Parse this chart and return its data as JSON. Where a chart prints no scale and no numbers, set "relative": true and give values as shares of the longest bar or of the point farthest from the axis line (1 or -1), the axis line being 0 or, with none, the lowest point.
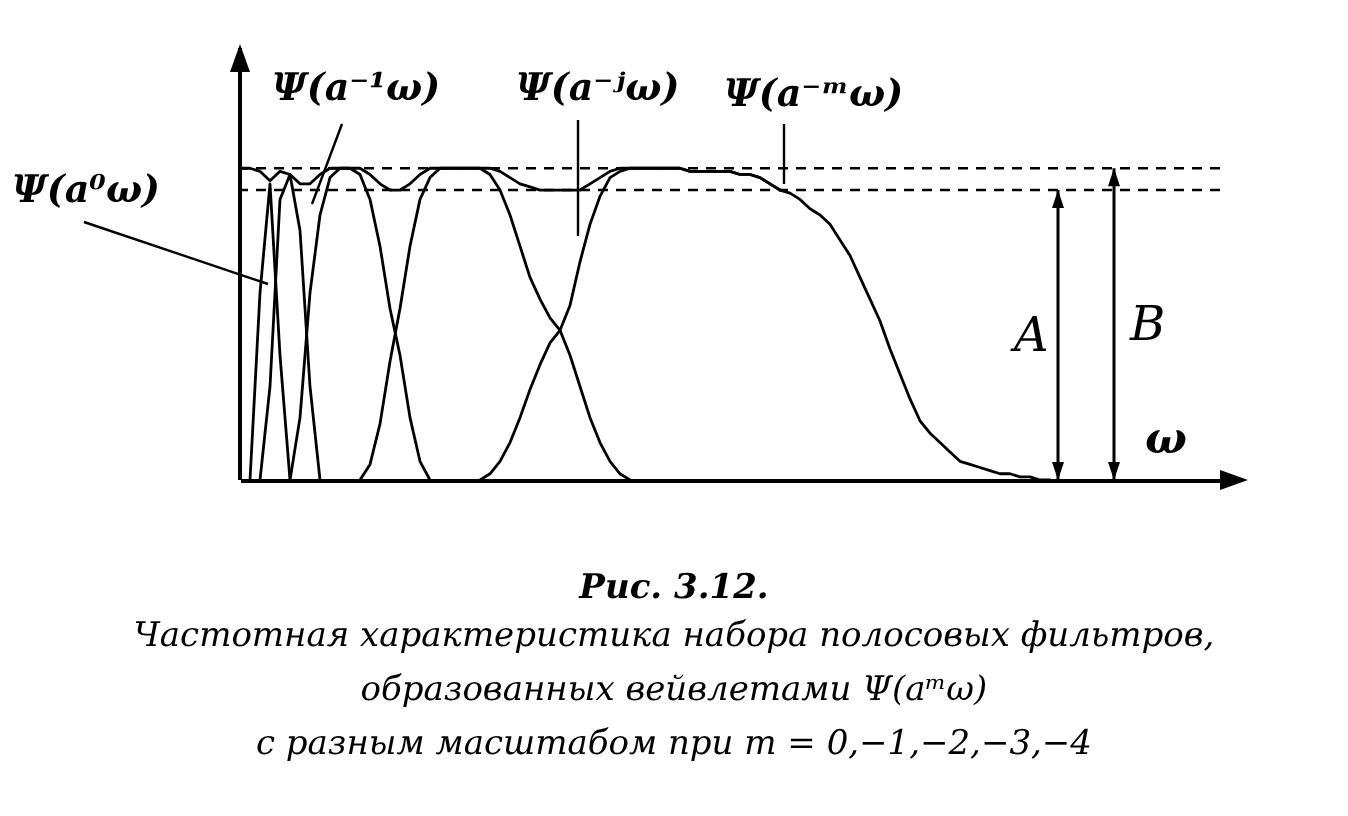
{
  "chart_data": {
    "type": "line",
    "relative": true,
    "title": "Рис. 3.12.",
    "xlabel": "ω",
    "categories": [
      null,
      null,
      null,
      null,
      null,
      null,
      null,
      null,
      null,
      null,
      null,
      null,
      null,
      null,
      null,
      null,
      null,
      null,
      null,
      null,
      null,
      null,
      null,
      null,
      null,
      null,
      null,
      null,
      null,
      null,
      null,
      null,
      null,
      null,
      null,
      null,
      null,
      null,
      null,
      null,
      null,
      null,
      null,
      null,
      null,
      null,
      null,
      null,
      null,
      null,
      null,
      null,
      null,
      null,
      null,
      null,
      null,
      null,
      null,
      null,
      null,
      null,
      null,
      null,
      null,
      null,
      null,
      null,
      null,
      null,
      null,
      null,
      null,
      null,
      null,
      null,
      null,
      null,
      null,
      null,
      null,
      null,
      null,
      null,
      null,
      null,
      null,
      null,
      null,
      null,
      null,
      null,
      null,
      null,
      null,
      null,
      null,
      null,
      null
    ],
    "series": [
      {
        "color": "#000000",
        "values": [
          1,
          1,
          0.99,
          0.96,
          0.99,
          0.98,
          0.95,
          0.95,
          0.98,
          1,
          1,
          1,
          1,
          0.98,
          0.95,
          0.93,
          0.93,
          0.95,
          0.98,
          1,
          1,
          1,
          1,
          1,
          1,
          1,
          0.99,
          0.97,
          0.95,
          0.94,
          0.93,
          0.93,
          0.93,
          0.93,
          0.93,
          0.95,
          0.97,
          0.99,
          1,
          1,
          1,
          1,
          1,
          1,
          1,
          0.99,
          0.99,
          0.99,
          0.99,
          0.99,
          0.98,
          0.98,
          0.97,
          0.95,
          0.93,
          null,
          null,
          null,
          null,
          null,
          null,
          null,
          null,
          null,
          null,
          null,
          null,
          null,
          null,
          null,
          null,
          null,
          null,
          null,
          null,
          null,
          null,
          null,
          null,
          null,
          null,
          null,
          null,
          null,
          null,
          null,
          null,
          null,
          null,
          null,
          null,
          null,
          null,
          null,
          null,
          null,
          null,
          null,
          null
        ]
      },
      {
        "color": "#000000",
        "values": [
          null,
          0,
          0.6,
          0.95,
          0.4,
          0,
          null,
          null,
          null,
          null,
          null,
          null,
          null,
          null,
          null,
          null,
          null,
          null,
          null,
          null,
          null,
          null,
          null,
          null,
          null,
          null,
          null,
          null,
          null,
          null,
          null,
          null,
          null,
          null,
          null,
          null,
          null,
          null,
          null,
          null,
          null,
          null,
          null,
          null,
          null,
          null,
          null,
          null,
          null,
          null,
          null,
          null,
          null,
          null,
          null,
          null,
          null,
          null,
          null,
          null,
          null,
          null,
          null,
          null,
          null,
          null,
          null,
          null,
          null,
          null,
          null,
          null,
          null,
          null,
          null,
          null,
          null,
          null,
          null,
          null,
          null,
          null,
          null,
          null,
          null,
          null,
          null,
          null,
          null,
          null,
          null,
          null,
          null,
          null,
          null,
          null,
          null,
          null,
          null
        ]
      },
      {
        "color": "#000000",
        "values": [
          null,
          null,
          0,
          0.3,
          0.9,
          0.98,
          0.8,
          0.3,
          0,
          null,
          null,
          null,
          null,
          null,
          null,
          null,
          null,
          null,
          null,
          null,
          null,
          null,
          null,
          null,
          null,
          null,
          null,
          null,
          null,
          null,
          null,
          null,
          null,
          null,
          null,
          null,
          null,
          null,
          null,
          null,
          null,
          null,
          null,
          null,
          null,
          null,
          null,
          null,
          null,
          null,
          null,
          null,
          null,
          null,
          null,
          null,
          null,
          null,
          null,
          null,
          null,
          null,
          null,
          null,
          null,
          null,
          null,
          null,
          null,
          null,
          null,
          null,
          null,
          null,
          null,
          null,
          null,
          null,
          null,
          null,
          null,
          null,
          null,
          null,
          null,
          null,
          null,
          null,
          null,
          null,
          null,
          null,
          null,
          null,
          null,
          null,
          null,
          null,
          null
        ]
      },
      {
        "color": "#000000",
        "values": [
          null,
          null,
          null,
          null,
          null,
          0,
          0.2,
          0.6,
          0.85,
          0.97,
          1,
          1,
          0.98,
          0.9,
          0.75,
          0.55,
          0.4,
          0.2,
          0.06,
          0,
          null,
          null,
          null,
          null,
          null,
          null,
          null,
          null,
          null,
          null,
          null,
          null,
          null,
          null,
          null,
          null,
          null,
          null,
          null,
          null,
          null,
          null,
          null,
          null,
          null,
          null,
          null,
          null,
          null,
          null,
          null,
          null,
          null,
          null,
          null,
          null,
          null,
          null,
          null,
          null,
          null,
          null,
          null,
          null,
          null,
          null,
          null,
          null,
          null,
          null,
          null,
          null,
          null,
          null,
          null,
          null,
          null,
          null,
          null,
          null,
          null,
          null,
          null,
          null,
          null,
          null,
          null,
          null,
          null,
          null,
          null,
          null,
          null,
          null,
          null,
          null,
          null,
          null,
          null
        ]
      },
      {
        "color": "#000000",
        "values": [
          null,
          null,
          null,
          null,
          null,
          null,
          null,
          null,
          null,
          null,
          null,
          null,
          0,
          0.05,
          0.18,
          0.38,
          0.55,
          0.75,
          0.9,
          0.97,
          1,
          1,
          1,
          1,
          1,
          0.98,
          0.93,
          0.85,
          0.75,
          0.65,
          0.58,
          0.52,
          0.48,
          0.4,
          0.3,
          0.2,
          0.12,
          0.06,
          0.02,
          0,
          null,
          null,
          null,
          null,
          null,
          null,
          null,
          null,
          null,
          null,
          null,
          null,
          null,
          null,
          null,
          null,
          null,
          null,
          null,
          null,
          null,
          null,
          null,
          null,
          null,
          null,
          null,
          null,
          null,
          null,
          null,
          null,
          null,
          null,
          null,
          null,
          null,
          null,
          null,
          null,
          null,
          null,
          null,
          null,
          null,
          null,
          null,
          null,
          null,
          null,
          null,
          null,
          null,
          null,
          null,
          null,
          null,
          null,
          null
        ]
      },
      {
        "color": "#000000",
        "values": [
          null,
          null,
          null,
          null,
          null,
          null,
          null,
          null,
          null,
          null,
          null,
          null,
          null,
          null,
          null,
          null,
          null,
          null,
          null,
          null,
          null,
          null,
          null,
          null,
          0,
          0.02,
          0.06,
          0.12,
          0.2,
          0.29,
          0.37,
          0.44,
          0.48,
          0.56,
          0.7,
          0.82,
          0.91,
          0.97,
          0.99,
          1,
          1,
          1,
          1,
          1,
          1,
          0.99,
          0.99,
          0.99,
          0.99,
          0.99,
          0.98,
          0.98,
          0.97,
          0.95,
          0.93,
          0.92,
          0.9,
          0.87,
          0.85,
          0.82,
          0.77,
          0.72,
          0.65,
          0.58,
          0.51,
          0.42,
          0.34,
          0.26,
          0.19,
          0.15,
          0.12,
          0.09,
          0.06,
          0.05,
          0.04,
          0.03,
          0.02,
          0.02,
          0.01,
          0.01,
          0,
          0,
          null,
          null,
          null,
          null,
          null,
          null,
          null,
          null,
          null,
          null,
          null,
          null,
          null,
          null,
          null,
          null,
          null
        ]
      }
    ],
    "ref_lines": [
      {
        "axis": "y",
        "value": 0.93,
        "label": "A",
        "line_style": "dashed",
        "color": "#000000"
      },
      {
        "axis": "y",
        "value": 1,
        "label": "B",
        "line_style": "dashed",
        "color": "#000000"
      }
    ],
    "annotations": [
      "Ψ(a⁰ω)",
      "Ψ(a⁻¹ω)",
      "Ψ(a⁻ʲω)",
      "Ψ(a⁻ᵐω)",
      "Частотная характеристика набора полосовых фильтров,",
      "образованных вейвлетами Ψ(aᵐω)",
      "с разным масштабом при m = 0,−1,−2,−3,−4"
    ]
  }
}
